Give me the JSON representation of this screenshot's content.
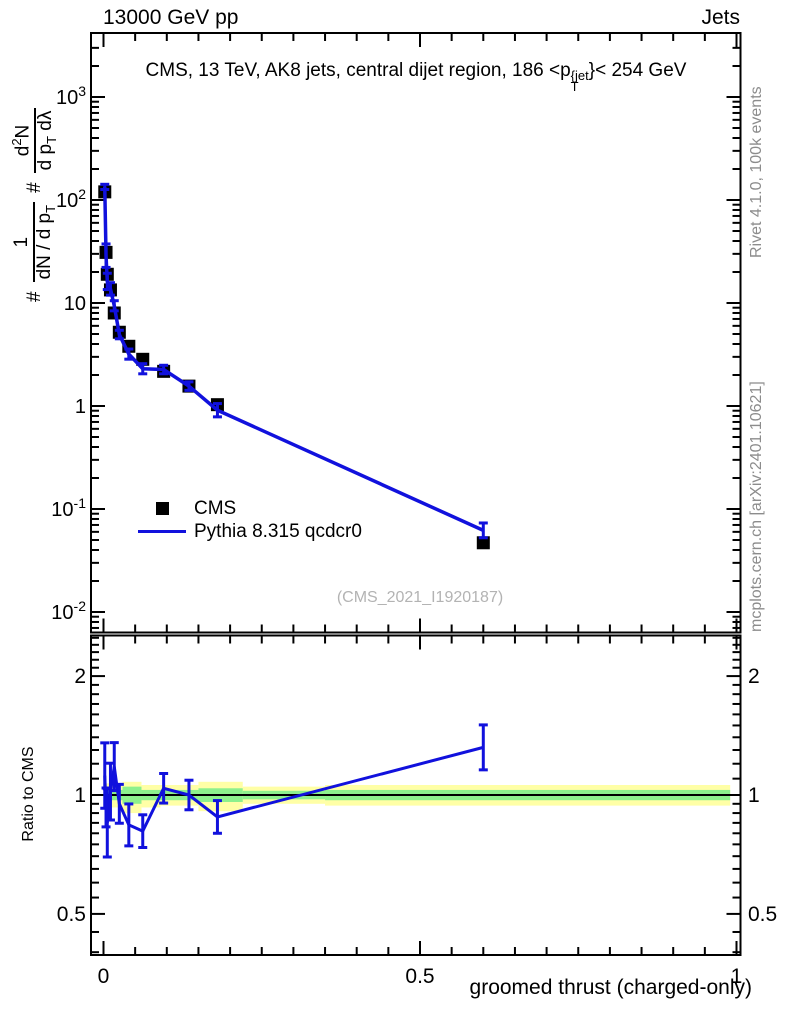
{
  "header": {
    "left": "13000 GeV pp",
    "right": "Jets"
  },
  "title": {
    "pre": "CMS, 13 TeV, AK8 jets, central dijet region, 186 <p",
    "sup": "{jet",
    "sub": "T",
    "post": "}< 254 GeV"
  },
  "ylabel": {
    "hash1": "#",
    "frac1_num": "1",
    "frac1_den_pre": "dN / d p",
    "frac1_den_sub": "T",
    "hash2": "#",
    "frac2_num_pre": "d",
    "frac2_num_sup": "2",
    "frac2_num_post": "N",
    "frac2_den_pre": "d p",
    "frac2_den_sub": "T",
    "frac2_den_post": " dλ"
  },
  "legend": {
    "cms_label": "CMS",
    "mc_label": "Pythia 8.315 qcdcr0"
  },
  "watermark": "(CMS_2021_I1920187)",
  "side_notes": {
    "rivet": "Rivet 4.1.0,  100k events",
    "mcplots": "mcplots.cern.ch [arXiv:2401.10621]"
  },
  "ratio_ylabel": "Ratio to CMS",
  "xlabel": "groomed thrust (charged-only)",
  "chart_data": {
    "type": "scatter",
    "title": "CMS, 13 TeV, AK8 jets, central dijet region, 186 < pT(jet) < 254 GeV",
    "xlabel": "groomed thrust (charged-only)",
    "ylabel": "#1/(dN/dpT) # d2N/(dpT dlambda)",
    "x_range": [
      0,
      1
    ],
    "y_main_log_range": [
      -2.2,
      3.62
    ],
    "ratio_log_range": [
      -0.405,
      0.405
    ],
    "x": [
      0.002,
      0.004,
      0.006,
      0.011,
      0.017,
      0.025,
      0.04,
      0.062,
      0.095,
      0.135,
      0.18,
      0.6
    ],
    "cms_y": [
      120,
      31,
      19,
      13.4,
      8.0,
      5.2,
      3.8,
      2.84,
      2.17,
      1.56,
      1.03,
      0.047
    ],
    "pythia_y": [
      134,
      28.8,
      16.2,
      13.7,
      9.4,
      4.94,
      3.19,
      2.3,
      2.26,
      1.56,
      0.91,
      0.062
    ],
    "pythia_rel_err": [
      0.06,
      0.3,
      0.2,
      0.15,
      0.12,
      0.1,
      0.12,
      0.12,
      0.1,
      0.1,
      0.16,
      0.18
    ],
    "ratio": [
      1.12,
      0.93,
      0.85,
      1.02,
      1.18,
      0.95,
      0.84,
      0.81,
      1.04,
      1.0,
      0.88,
      1.32
    ],
    "ratio_rel_err": [
      0.21,
      0.12,
      0.22,
      0.18,
      0.15,
      0.12,
      0.13,
      0.1,
      0.09,
      0.09,
      0.1,
      0.14
    ],
    "band_yellow": [
      [
        0.0,
        0.004,
        0.95,
        1.05
      ],
      [
        0.004,
        0.012,
        0.86,
        1.07
      ],
      [
        0.012,
        0.03,
        0.93,
        1.06
      ],
      [
        0.03,
        0.06,
        0.9,
        1.08
      ],
      [
        0.06,
        0.09,
        0.93,
        1.06
      ],
      [
        0.09,
        0.15,
        0.94,
        1.06
      ],
      [
        0.15,
        0.22,
        0.91,
        1.08
      ],
      [
        0.22,
        0.35,
        0.95,
        1.05
      ],
      [
        0.35,
        0.99,
        0.94,
        1.06
      ]
    ],
    "band_green": [
      [
        0.0,
        0.004,
        0.975,
        1.025
      ],
      [
        0.004,
        0.012,
        0.95,
        1.04
      ],
      [
        0.012,
        0.03,
        0.97,
        1.03
      ],
      [
        0.03,
        0.06,
        0.95,
        1.05
      ],
      [
        0.06,
        0.09,
        0.97,
        1.03
      ],
      [
        0.09,
        0.15,
        0.97,
        1.03
      ],
      [
        0.15,
        0.22,
        0.96,
        1.04
      ],
      [
        0.22,
        0.35,
        0.975,
        1.025
      ],
      [
        0.35,
        0.99,
        0.97,
        1.03
      ]
    ],
    "colors": {
      "cms": "#000000",
      "pythia": "#1111dd",
      "band_yellow": "#ffffa6",
      "band_green": "#8df08d",
      "frame": "#000000"
    },
    "axes": {
      "x": {
        "ticks": [
          {
            "v": 0,
            "t": "0"
          },
          {
            "v": 0.5,
            "t": "0.5"
          },
          {
            "v": 1,
            "t": "1"
          }
        ],
        "minor_step": 0.05
      },
      "y_main": {
        "ticks": [
          {
            "v": 1000,
            "t": "10",
            "e": "3"
          },
          {
            "v": 100,
            "t": "10",
            "e": "2"
          },
          {
            "v": 10,
            "t": "10",
            "e": ""
          },
          {
            "v": 1,
            "t": "1",
            "e": ""
          },
          {
            "v": 0.1,
            "t": "10",
            "e": "-1"
          },
          {
            "v": 0.01,
            "t": "10",
            "e": "-2"
          }
        ]
      },
      "y_ratio": {
        "ticks": [
          {
            "v": 0.5,
            "t": "0.5"
          },
          {
            "v": 1,
            "t": "1"
          },
          {
            "v": 2,
            "t": "2"
          }
        ]
      }
    }
  }
}
